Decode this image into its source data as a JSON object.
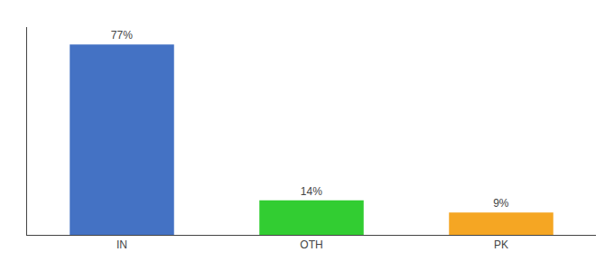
{
  "chart_data": {
    "type": "bar",
    "categories": [
      "IN",
      "OTH",
      "PK"
    ],
    "values": [
      77,
      14,
      9
    ],
    "value_labels": [
      "77%",
      "14%",
      "9%"
    ],
    "colors": [
      "#4472c4",
      "#32cd32",
      "#f5a623"
    ],
    "ylim": [
      0,
      84
    ],
    "grid": false,
    "data_labels": true,
    "tick_labels": "x"
  }
}
